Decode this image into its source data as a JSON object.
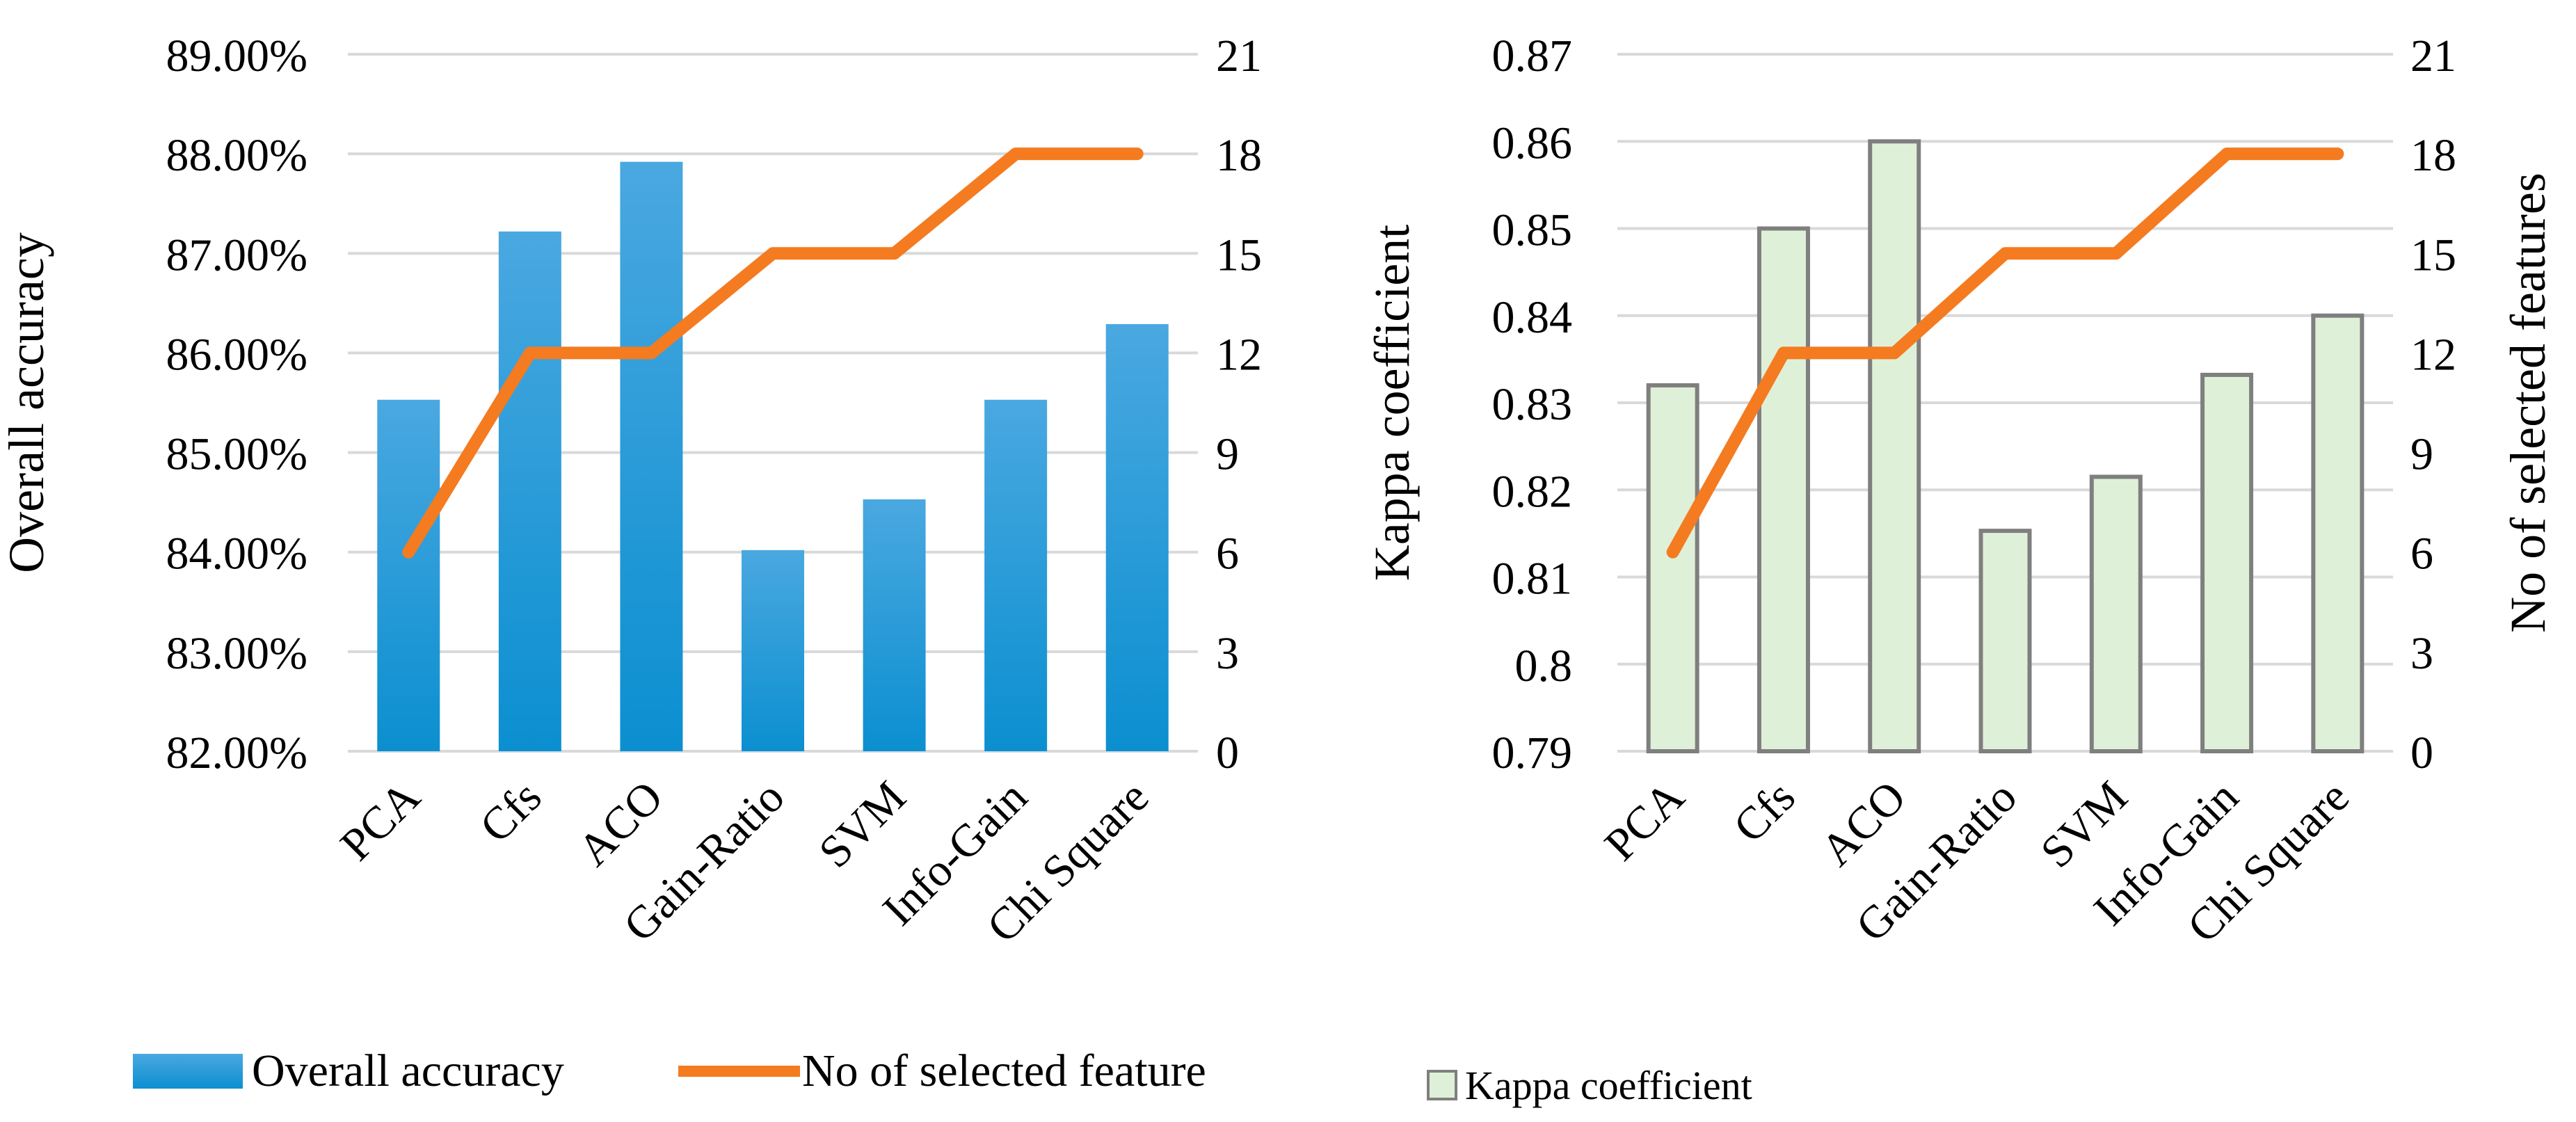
{
  "chart_data": [
    {
      "type": "bar+line",
      "categories": [
        "PCA",
        "Cfs",
        "ACO",
        "Gain-Ratio",
        "SVM",
        "Info-Gain",
        "Chi Square"
      ],
      "bar_series": {
        "name": "Overall accuracy",
        "values": [
          85.53,
          87.22,
          87.92,
          84.02,
          84.53,
          85.53,
          86.29
        ],
        "color": "#0a9ad8"
      },
      "line_series": {
        "name": "No of selected feature",
        "values": [
          6,
          12,
          12,
          15,
          15,
          18,
          18
        ],
        "color": "#f47b20"
      },
      "ylabel": "Overall accuracy",
      "ylabel_right": "",
      "ylim": [
        82,
        89
      ],
      "ylim_right": [
        0,
        21
      ],
      "y_ticks": [
        "82.00%",
        "83.00%",
        "84.00%",
        "85.00%",
        "86.00%",
        "87.00%",
        "88.00%",
        "89.00%"
      ],
      "y_ticks_right": [
        "0",
        "3",
        "6",
        "9",
        "12",
        "15",
        "18",
        "21"
      ],
      "grid": true
    },
    {
      "type": "bar+line",
      "categories": [
        "PCA",
        "Cfs",
        "ACO",
        "Gain-Ratio",
        "SVM",
        "Info-Gain",
        "Chi Square"
      ],
      "bar_series": {
        "name": "Kappa coefficient",
        "values": [
          0.832,
          0.85,
          0.86,
          0.8153,
          0.8215,
          0.8332,
          0.84
        ],
        "color": "#dff0d8",
        "edge": "#7f7f7f"
      },
      "line_series": {
        "name": "No of selected feature",
        "values": [
          6,
          12,
          12,
          15,
          15,
          18,
          18
        ],
        "color": "#f47b20"
      },
      "ylabel": "Kappa coefficient",
      "ylabel_right": "No of selected features",
      "ylim": [
        0.79,
        0.87
      ],
      "ylim_right": [
        0,
        21
      ],
      "y_ticks": [
        "0.79",
        "0.8",
        "0.81",
        "0.82",
        "0.83",
        "0.84",
        "0.85",
        "0.86",
        "0.87"
      ],
      "y_ticks_right": [
        "0",
        "3",
        "6",
        "9",
        "12",
        "15",
        "18",
        "21"
      ],
      "grid": true
    }
  ],
  "legend": {
    "items": [
      {
        "label": "Overall accuracy",
        "kind": "bar-blue"
      },
      {
        "label": "No of selected feature",
        "kind": "line-orange"
      },
      {
        "label": "Kappa coefficient",
        "kind": "bar-green"
      }
    ]
  }
}
